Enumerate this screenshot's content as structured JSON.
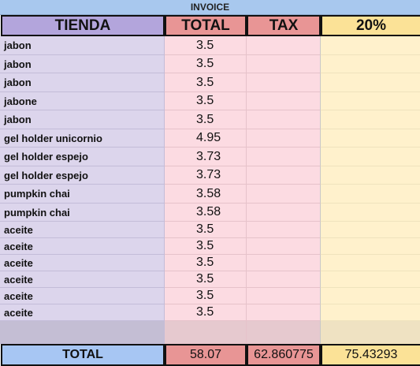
{
  "sheet": {
    "title": "INVOICE",
    "headers": {
      "tienda": "TIENDA",
      "total": "TOTAL",
      "tax": "TAX",
      "percent": "20%"
    },
    "rows": [
      {
        "name": "jabon",
        "total": "3.5"
      },
      {
        "name": "jabon",
        "total": "3.5"
      },
      {
        "name": "jabon",
        "total": "3.5"
      },
      {
        "name": "jabone",
        "total": "3.5"
      },
      {
        "name": "jabon",
        "total": "3.5"
      },
      {
        "name": "gel holder unicornio",
        "total": "4.95"
      },
      {
        "name": "gel holder espejo",
        "total": "3.73"
      },
      {
        "name": "gel holder espejo",
        "total": "3.73"
      },
      {
        "name": "pumpkin chai",
        "total": "3.58"
      },
      {
        "name": "pumpkin chai",
        "total": "3.58"
      },
      {
        "name": "aceite",
        "total": "3.5"
      },
      {
        "name": "aceite",
        "total": "3.5"
      },
      {
        "name": "aceite",
        "total": "3.5"
      },
      {
        "name": "aceite",
        "total": "3.5"
      },
      {
        "name": "aceite",
        "total": "3.5"
      },
      {
        "name": "aceite",
        "total": "3.5"
      }
    ],
    "totals": {
      "label": "TOTAL",
      "total": "58.07",
      "tax": "62.860775",
      "percent": "75.43293"
    }
  },
  "colors": {
    "title_bar": "#a8c8ee",
    "tienda_header": "#b3a5dc",
    "total_header": "#e89595",
    "percent_header": "#fbe297",
    "name_column": "#dcd5ec",
    "total_column": "#fcdbe2",
    "percent_column": "#fff1cc",
    "totals_label": "#a7c6f3"
  }
}
